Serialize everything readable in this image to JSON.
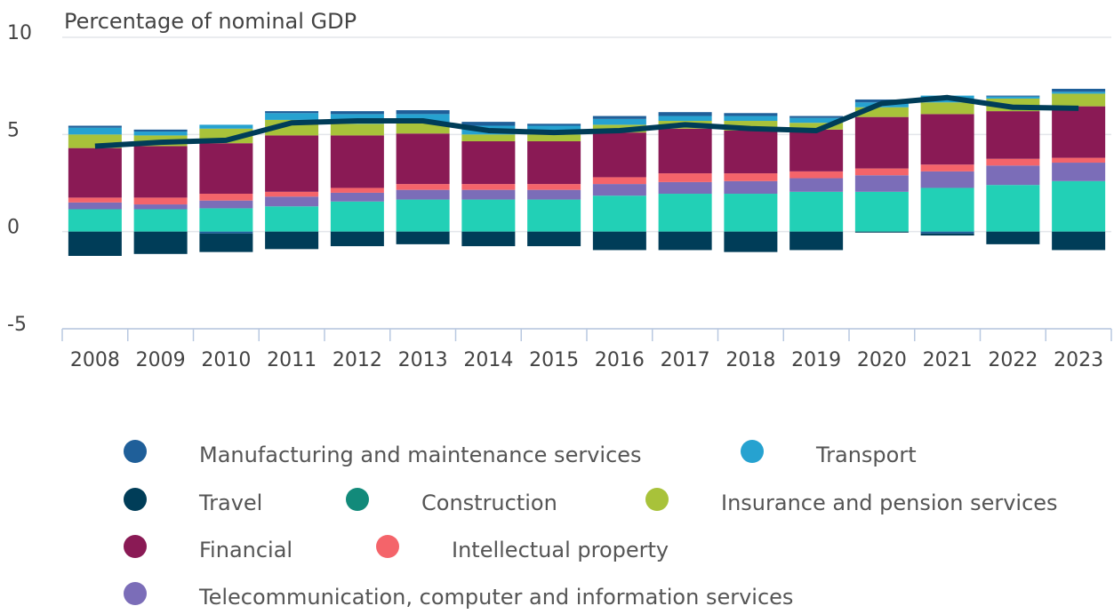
{
  "chart_data": {
    "type": "bar",
    "stacked": true,
    "title": "Percentage of nominal GDP",
    "categories": [
      "2008",
      "2009",
      "2010",
      "2011",
      "2012",
      "2013",
      "2014",
      "2015",
      "2016",
      "2017",
      "2018",
      "2019",
      "2020",
      "2021",
      "2022",
      "2023"
    ],
    "ylim": [
      -5,
      10
    ],
    "yticks": [
      10,
      5,
      0,
      -5
    ],
    "grid": true,
    "series": [
      {
        "name": "Manufacturing and maintenance services",
        "color": "#1f5f99",
        "values": [
          0.1,
          0.1,
          -0.1,
          0.1,
          0.15,
          0.2,
          0.2,
          0.1,
          0.15,
          0.2,
          0.15,
          0.1,
          0.15,
          -0.1,
          0.05,
          0.15
        ]
      },
      {
        "name": "Transport",
        "color": "#26a2d0",
        "values": [
          0.35,
          0.2,
          0.2,
          0.35,
          0.5,
          0.45,
          0.45,
          0.45,
          0.3,
          0.25,
          0.25,
          0.25,
          0.25,
          0.35,
          0.1,
          0.1
        ]
      },
      {
        "name": "Travel",
        "color": "#003d58",
        "values": [
          -1.25,
          -1.15,
          -0.95,
          -0.9,
          -0.75,
          -0.65,
          -0.75,
          -0.75,
          -0.95,
          -0.95,
          -1.05,
          -0.95,
          -0.05,
          -0.1,
          -0.65,
          -0.95
        ]
      },
      {
        "name": "Construction",
        "color": "#128a7a",
        "values": [
          0,
          0,
          0,
          0,
          0,
          0,
          0,
          0,
          0,
          0,
          0,
          0,
          0,
          0,
          0,
          0
        ]
      },
      {
        "name": "Insurance and pension services",
        "color": "#a8c23a",
        "values": [
          0.7,
          0.55,
          0.75,
          0.8,
          0.6,
          0.55,
          0.35,
          0.35,
          0.4,
          0.4,
          0.5,
          0.35,
          0.5,
          0.6,
          0.65,
          0.65
        ]
      },
      {
        "name": "Financial",
        "color": "#8a1a55",
        "values": [
          2.55,
          2.65,
          2.6,
          2.9,
          2.7,
          2.6,
          2.2,
          2.2,
          2.3,
          2.3,
          2.2,
          2.15,
          2.65,
          2.6,
          2.45,
          2.65
        ]
      },
      {
        "name": "Intellectual property",
        "color": "#f4646a",
        "values": [
          0.25,
          0.35,
          0.35,
          0.25,
          0.25,
          0.3,
          0.3,
          0.3,
          0.35,
          0.45,
          0.4,
          0.35,
          0.35,
          0.35,
          0.35,
          0.25
        ]
      },
      {
        "name": "Telecommunication, computer and information services",
        "color": "#7b6db8",
        "values": [
          0.35,
          0.25,
          0.4,
          0.5,
          0.45,
          0.5,
          0.5,
          0.5,
          0.6,
          0.6,
          0.65,
          0.7,
          0.85,
          0.85,
          1.0,
          0.95
        ]
      },
      {
        "color": "#22d0b6",
        "values": [
          1.15,
          1.15,
          1.2,
          1.3,
          1.55,
          1.65,
          1.65,
          1.65,
          1.85,
          1.95,
          1.95,
          2.05,
          2.05,
          2.25,
          2.4,
          2.6
        ]
      }
    ],
    "line": {
      "color": "#003d58",
      "values": [
        4.4,
        4.6,
        4.7,
        5.6,
        5.7,
        5.7,
        5.2,
        5.1,
        5.2,
        5.5,
        5.3,
        5.2,
        6.6,
        6.9,
        6.4,
        6.35
      ]
    }
  }
}
